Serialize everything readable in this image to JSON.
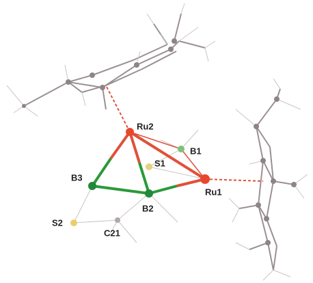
{
  "labels": {
    "ru2": "Ru2",
    "b1": "B1",
    "s1": "S1",
    "b3": "B3",
    "ru1": "Ru1",
    "b2": "B2",
    "s2": "S2",
    "c21": "C21"
  }
}
